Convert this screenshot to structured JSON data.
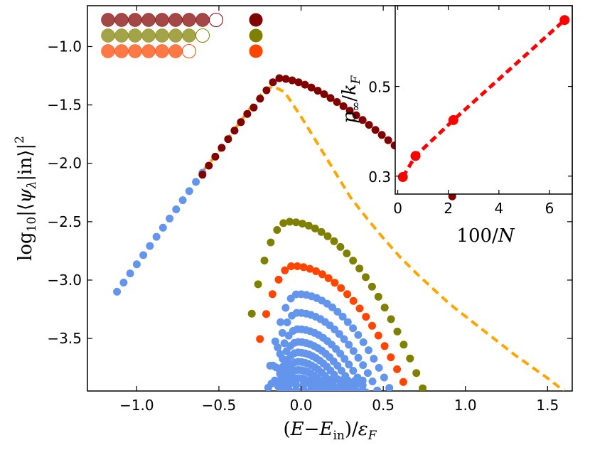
{
  "chart_data": [
    {
      "type": "scatter",
      "panel": "main",
      "xlabel": "(E−E_in)/ε_F",
      "xlabel_parts": {
        "open": "(",
        "e": "E",
        "minus": "−",
        "e2": "E",
        "sub_in": "in",
        "close": ")/",
        "eps": "ε",
        "sub_f": "F"
      },
      "ylabel": "log10|⟨ψλ|in⟩|²",
      "ylabel_parts": {
        "log": "log",
        "sub10": "10",
        "bar": "|",
        "lang": "⟨",
        "psi": "ψ",
        "sub_lambda": "λ",
        "pipe": "|",
        "in": "in",
        "rang": "⟩",
        "bar2": "|",
        "sup2": "2"
      },
      "xlim": [
        -1.3,
        1.65
      ],
      "ylim": [
        -3.95,
        -0.65
      ],
      "xticks": [
        -1.0,
        -0.5,
        0.0,
        0.5,
        1.0,
        1.5
      ],
      "xtick_labels": [
        "−1.0",
        "−0.5",
        "0.0",
        "0.5",
        "1.0",
        "1.5"
      ],
      "yticks": [
        -1.0,
        -1.5,
        -2.0,
        -2.5,
        -3.0,
        -3.5
      ],
      "ytick_labels": [
        "−1.0",
        "−1.5",
        "−2.0",
        "−2.5",
        "−3.0",
        "−3.5"
      ],
      "dashed_curve": {
        "color": "#ffa500",
        "x": [
          -0.6,
          -0.5,
          -0.4,
          -0.3,
          -0.25,
          -0.2,
          -0.17,
          -0.1,
          0.0,
          0.1,
          0.2,
          0.3,
          0.4,
          0.5,
          0.6,
          0.7,
          0.8,
          0.9,
          1.0,
          1.1,
          1.2,
          1.3,
          1.4,
          1.5,
          1.6
        ],
        "y": [
          -2.07,
          -1.9,
          -1.7,
          -1.51,
          -1.42,
          -1.36,
          -1.34,
          -1.39,
          -1.6,
          -1.83,
          -2.06,
          -2.29,
          -2.47,
          -2.64,
          -2.8,
          -2.94,
          -3.07,
          -3.2,
          -3.31,
          -3.42,
          -3.53,
          -3.64,
          -3.74,
          -3.84,
          -3.95
        ]
      },
      "series": [
        {
          "name": "overlap_maroon",
          "color": "#800000",
          "x_start": -0.6,
          "x_end": 0.92,
          "peak_x": -0.15,
          "peak_y": -1.27,
          "left_slope": 1.66,
          "right_decay": 2.6,
          "count": 40
        },
        {
          "name": "overlap_blue_left",
          "color": "#6495ed",
          "x_start": -1.12,
          "x_end": -0.6,
          "slope": 1.96,
          "y_at_start": -3.1,
          "count": 14
        },
        {
          "name": "overlap_olive",
          "color": "#808000",
          "x_start": -0.3,
          "x_end": 0.74,
          "peak_x": -0.08,
          "peak_y": -2.5,
          "left_sigma": 0.13,
          "right_sigma": 0.36,
          "count": 28
        },
        {
          "name": "overlap_orangered",
          "color": "#ff4500",
          "x_start": -0.25,
          "x_end": 0.66,
          "peak_x": -0.05,
          "peak_y": -2.88,
          "left_sigma": 0.12,
          "right_sigma": 0.32,
          "count": 25
        },
        {
          "name": "overlap_blue_bands",
          "color": "#6495ed",
          "bands": [
            {
              "peak_y": -3.12,
              "x_start": -0.22,
              "x_end": 0.6
            },
            {
              "peak_y": -3.28,
              "x_start": -0.2,
              "x_end": 0.55
            },
            {
              "peak_y": -3.42,
              "x_start": -0.18,
              "x_end": 0.5
            },
            {
              "peak_y": -3.53,
              "x_start": -0.16,
              "x_end": 0.46
            },
            {
              "peak_y": -3.62,
              "x_start": -0.15,
              "x_end": 0.42
            },
            {
              "peak_y": -3.7,
              "x_start": -0.14,
              "x_end": 0.39
            },
            {
              "peak_y": -3.77,
              "x_start": -0.13,
              "x_end": 0.36
            },
            {
              "peak_y": -3.84,
              "x_start": -0.12,
              "x_end": 0.33
            }
          ]
        }
      ],
      "legend": {
        "placement": "top-left",
        "rows": [
          {
            "color": "#800000",
            "filled_count": 8,
            "open_index": 9,
            "total": 9,
            "marker_color": "#800000"
          },
          {
            "color": "#808000",
            "filled_count": 7,
            "open_index": 8,
            "total": 9,
            "marker_color": "#808000"
          },
          {
            "color": "#ff4500",
            "filled_count": 6,
            "open_index": 7,
            "total": 9,
            "marker_color": "#ff4500"
          }
        ]
      }
    },
    {
      "type": "line",
      "panel": "inset",
      "placement": "top-right",
      "xlabel": "100/N",
      "xlabel_parts": {
        "num": "100/",
        "n": "N"
      },
      "ylabel": "p∞/kF",
      "ylabel_parts": {
        "p": "p",
        "sub_inf": "∞",
        "slash": "/",
        "k": "k",
        "sub_f": "F"
      },
      "xlim": [
        -0.1,
        6.9
      ],
      "ylim": [
        0.26,
        0.68
      ],
      "xticks": [
        0,
        2,
        4,
        6
      ],
      "xtick_labels": [
        "0",
        "2",
        "4",
        "6"
      ],
      "yticks": [
        0.3,
        0.5
      ],
      "ytick_labels": [
        "0.3",
        "0.5"
      ],
      "series": [
        {
          "name": "p_infinity",
          "color": "#ff0000",
          "style": "dashed",
          "x": [
            0.2,
            0.7,
            2.2,
            6.6
          ],
          "y": [
            0.298,
            0.345,
            0.425,
            0.648
          ]
        }
      ]
    }
  ]
}
